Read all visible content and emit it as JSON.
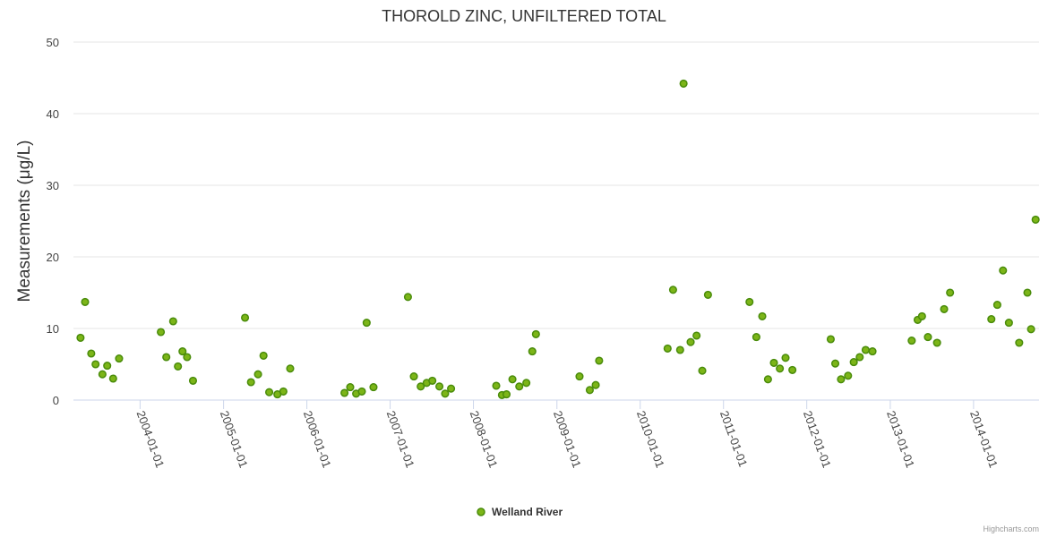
{
  "chart_data": {
    "type": "scatter",
    "title": "THOROLD ZINC, UNFILTERED TOTAL",
    "xlabel": "",
    "ylabel": "Measurements (μg/L)",
    "ylim": [
      0,
      50
    ],
    "yticks": [
      "0",
      "10",
      "20",
      "30",
      "40",
      "50"
    ],
    "xlim": [
      "2003-03-15",
      "2014-10-15"
    ],
    "xticks": [
      "2004-01-01",
      "2005-01-01",
      "2006-01-01",
      "2007-01-01",
      "2008-01-01",
      "2009-01-01",
      "2010-01-01",
      "2011-01-01",
      "2012-01-01",
      "2013-01-01",
      "2014-01-01"
    ],
    "grid": true,
    "legend_position": "bottom-center",
    "series": [
      {
        "name": "Welland River",
        "color": "#4a8c0b",
        "fill": "#7cb518",
        "points": [
          [
            "2003-04-15",
            8.7
          ],
          [
            "2003-05-05",
            13.7
          ],
          [
            "2003-06-01",
            6.5
          ],
          [
            "2003-06-20",
            5.0
          ],
          [
            "2003-07-20",
            3.6
          ],
          [
            "2003-08-10",
            4.8
          ],
          [
            "2003-09-05",
            3.0
          ],
          [
            "2003-10-01",
            5.8
          ],
          [
            "2004-04-01",
            9.5
          ],
          [
            "2004-04-25",
            6.0
          ],
          [
            "2004-05-25",
            11.0
          ],
          [
            "2004-06-15",
            4.7
          ],
          [
            "2004-07-05",
            6.8
          ],
          [
            "2004-07-25",
            6.0
          ],
          [
            "2004-08-20",
            2.7
          ],
          [
            "2005-04-05",
            11.5
          ],
          [
            "2005-05-01",
            2.5
          ],
          [
            "2005-06-01",
            3.6
          ],
          [
            "2005-06-25",
            6.2
          ],
          [
            "2005-07-20",
            1.1
          ],
          [
            "2005-08-25",
            0.8
          ],
          [
            "2005-09-20",
            1.2
          ],
          [
            "2005-10-20",
            4.4
          ],
          [
            "2006-06-15",
            1.0
          ],
          [
            "2006-07-10",
            1.8
          ],
          [
            "2006-08-05",
            0.9
          ],
          [
            "2006-08-30",
            1.2
          ],
          [
            "2006-09-20",
            10.8
          ],
          [
            "2006-10-20",
            1.8
          ],
          [
            "2007-03-20",
            14.4
          ],
          [
            "2007-04-15",
            3.3
          ],
          [
            "2007-05-15",
            1.9
          ],
          [
            "2007-06-10",
            2.4
          ],
          [
            "2007-07-05",
            2.7
          ],
          [
            "2007-08-05",
            1.9
          ],
          [
            "2007-08-30",
            0.9
          ],
          [
            "2007-09-25",
            1.6
          ],
          [
            "2008-04-10",
            2.0
          ],
          [
            "2008-05-05",
            0.7
          ],
          [
            "2008-05-25",
            0.8
          ],
          [
            "2008-06-20",
            2.9
          ],
          [
            "2008-07-20",
            1.9
          ],
          [
            "2008-08-20",
            2.4
          ],
          [
            "2008-09-15",
            6.8
          ],
          [
            "2008-10-01",
            9.2
          ],
          [
            "2009-04-10",
            3.3
          ],
          [
            "2009-05-25",
            1.4
          ],
          [
            "2009-06-20",
            2.1
          ],
          [
            "2009-07-05",
            5.5
          ],
          [
            "2010-05-01",
            7.2
          ],
          [
            "2010-05-25",
            15.4
          ],
          [
            "2010-06-25",
            7.0
          ],
          [
            "2010-07-10",
            44.2
          ],
          [
            "2010-08-10",
            8.1
          ],
          [
            "2010-09-05",
            9.0
          ],
          [
            "2010-09-30",
            4.1
          ],
          [
            "2010-10-25",
            14.7
          ],
          [
            "2011-04-25",
            13.7
          ],
          [
            "2011-05-25",
            8.8
          ],
          [
            "2011-06-20",
            11.7
          ],
          [
            "2011-07-15",
            2.9
          ],
          [
            "2011-08-10",
            5.2
          ],
          [
            "2011-09-05",
            4.4
          ],
          [
            "2011-09-30",
            5.9
          ],
          [
            "2011-10-30",
            4.2
          ],
          [
            "2012-04-15",
            8.5
          ],
          [
            "2012-05-05",
            5.1
          ],
          [
            "2012-05-30",
            2.9
          ],
          [
            "2012-06-30",
            3.4
          ],
          [
            "2012-07-25",
            5.3
          ],
          [
            "2012-08-20",
            6.0
          ],
          [
            "2012-09-15",
            7.0
          ],
          [
            "2012-10-15",
            6.8
          ],
          [
            "2013-04-05",
            8.3
          ],
          [
            "2013-05-01",
            11.2
          ],
          [
            "2013-05-20",
            11.7
          ],
          [
            "2013-06-15",
            8.8
          ],
          [
            "2013-07-25",
            8.0
          ],
          [
            "2013-08-25",
            12.7
          ],
          [
            "2013-09-20",
            15.0
          ],
          [
            "2014-03-20",
            11.3
          ],
          [
            "2014-04-15",
            13.3
          ],
          [
            "2014-05-10",
            18.1
          ],
          [
            "2014-06-05",
            10.8
          ],
          [
            "2014-07-20",
            8.0
          ],
          [
            "2014-08-25",
            15.0
          ],
          [
            "2014-09-10",
            9.9
          ],
          [
            "2014-09-30",
            25.2
          ]
        ]
      }
    ]
  },
  "credits": "Highcharts.com"
}
